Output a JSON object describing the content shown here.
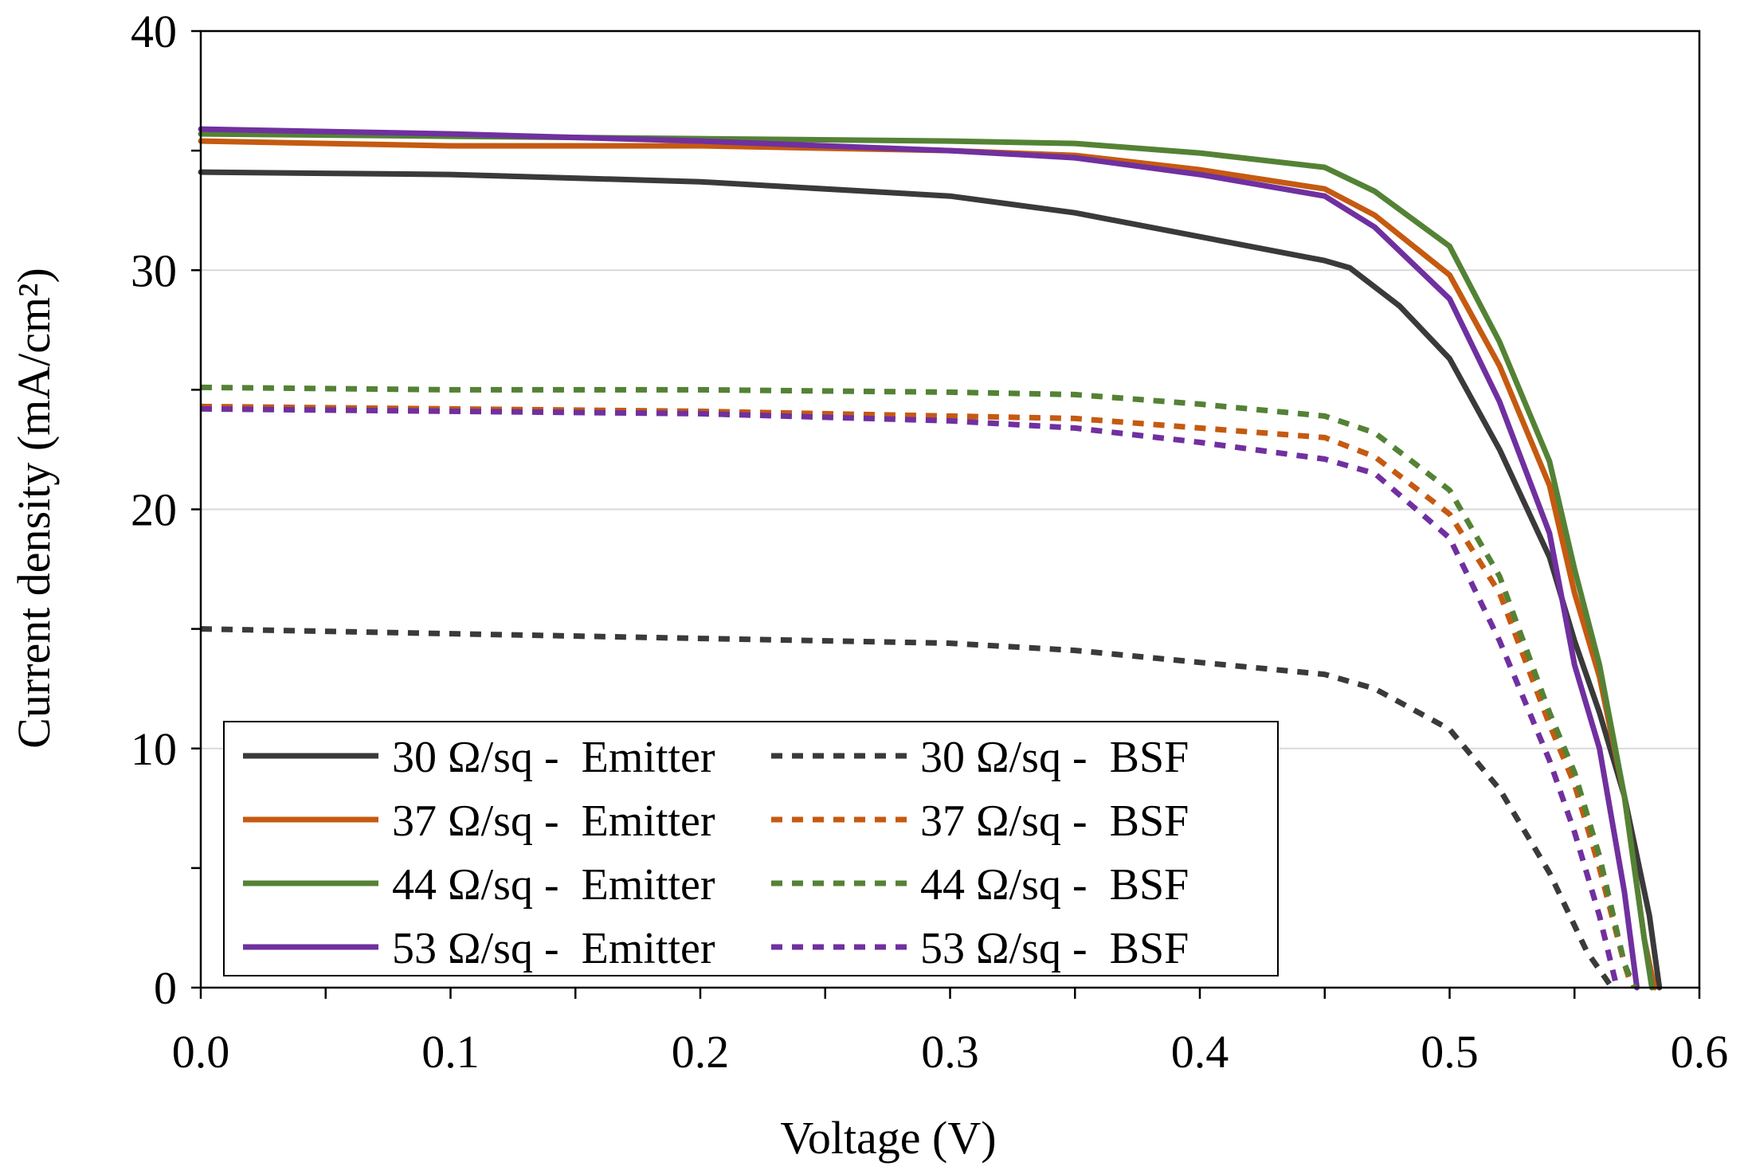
{
  "chart_data": {
    "type": "line",
    "title": "",
    "xlabel": "Voltage (V)",
    "ylabel": "Current density (mA/cm²)",
    "xlim": [
      0,
      0.6
    ],
    "ylim": [
      0,
      40
    ],
    "xticks": [
      "0.0",
      "0.1",
      "0.2",
      "0.3",
      "0.4",
      "0.5",
      "0.6"
    ],
    "yticks": [
      "0",
      "10",
      "20",
      "30",
      "40"
    ],
    "grid": "horizontal major",
    "legend_placement": "bottom-left",
    "series": [
      {
        "name": "30 Ω/sq -  Emitter",
        "color": "#3a3a3a",
        "dash": false,
        "x": [
          0,
          0.1,
          0.2,
          0.3,
          0.35,
          0.4,
          0.45,
          0.46,
          0.48,
          0.5,
          0.52,
          0.54,
          0.55,
          0.56,
          0.57,
          0.58,
          0.584
        ],
        "y": [
          34.1,
          34.0,
          33.7,
          33.1,
          32.4,
          31.4,
          30.4,
          30.1,
          28.5,
          26.3,
          22.5,
          18,
          14.5,
          11.5,
          8,
          3,
          0
        ]
      },
      {
        "name": "37 Ω/sq -  Emitter",
        "color": "#c55a11",
        "dash": false,
        "x": [
          0,
          0.1,
          0.2,
          0.3,
          0.35,
          0.4,
          0.45,
          0.47,
          0.5,
          0.52,
          0.54,
          0.55,
          0.56,
          0.57,
          0.578,
          0.582
        ],
        "y": [
          35.4,
          35.2,
          35.2,
          35.0,
          34.8,
          34.2,
          33.4,
          32.3,
          29.8,
          26,
          21,
          16.5,
          13,
          8,
          2,
          0
        ]
      },
      {
        "name": "44 Ω/sq -  Emitter",
        "color": "#548235",
        "dash": false,
        "x": [
          0,
          0.1,
          0.2,
          0.3,
          0.35,
          0.4,
          0.45,
          0.47,
          0.5,
          0.52,
          0.54,
          0.55,
          0.56,
          0.57,
          0.578,
          0.581
        ],
        "y": [
          35.7,
          35.6,
          35.5,
          35.4,
          35.3,
          34.9,
          34.3,
          33.3,
          31,
          27,
          22,
          17.5,
          13.5,
          8,
          2,
          0
        ]
      },
      {
        "name": "53 Ω/sq -  Emitter",
        "color": "#7030a0",
        "dash": false,
        "x": [
          0,
          0.1,
          0.2,
          0.3,
          0.35,
          0.4,
          0.45,
          0.47,
          0.5,
          0.52,
          0.54,
          0.55,
          0.56,
          0.57,
          0.575
        ],
        "y": [
          35.9,
          35.7,
          35.4,
          35.0,
          34.7,
          34.0,
          33.1,
          31.8,
          28.8,
          24.5,
          19,
          13.5,
          10,
          4,
          0
        ]
      },
      {
        "name": "30 Ω/sq -  BSF",
        "color": "#3a3a3a",
        "dash": true,
        "x": [
          0,
          0.1,
          0.2,
          0.3,
          0.35,
          0.4,
          0.45,
          0.47,
          0.5,
          0.52,
          0.54,
          0.555,
          0.565
        ],
        "y": [
          15,
          14.8,
          14.6,
          14.4,
          14.1,
          13.6,
          13.1,
          12.5,
          10.8,
          8.3,
          4.8,
          1.5,
          0
        ]
      },
      {
        "name": "37 Ω/sq -  BSF",
        "color": "#c55a11",
        "dash": true,
        "x": [
          0,
          0.1,
          0.2,
          0.3,
          0.35,
          0.4,
          0.45,
          0.47,
          0.5,
          0.52,
          0.54,
          0.55,
          0.56,
          0.57,
          0.573
        ],
        "y": [
          24.3,
          24.2,
          24.1,
          23.9,
          23.8,
          23.4,
          23.0,
          22.2,
          19.8,
          16.5,
          11,
          8.5,
          5,
          1,
          0
        ]
      },
      {
        "name": "44 Ω/sq -  BSF",
        "color": "#548235",
        "dash": true,
        "x": [
          0,
          0.1,
          0.2,
          0.3,
          0.35,
          0.4,
          0.45,
          0.47,
          0.5,
          0.52,
          0.54,
          0.55,
          0.56,
          0.57,
          0.574
        ],
        "y": [
          25.1,
          25.0,
          25.0,
          24.9,
          24.8,
          24.4,
          23.9,
          23.2,
          20.8,
          17.2,
          11.5,
          9,
          5.5,
          1,
          0
        ]
      },
      {
        "name": "53 Ω/sq -  BSF",
        "color": "#7030a0",
        "dash": true,
        "x": [
          0,
          0.1,
          0.2,
          0.3,
          0.35,
          0.4,
          0.45,
          0.47,
          0.5,
          0.52,
          0.54,
          0.55,
          0.56,
          0.567
        ],
        "y": [
          24.2,
          24.1,
          24.0,
          23.7,
          23.4,
          22.8,
          22.1,
          21.5,
          18.8,
          14.5,
          9.5,
          6.5,
          3,
          0
        ]
      }
    ]
  }
}
